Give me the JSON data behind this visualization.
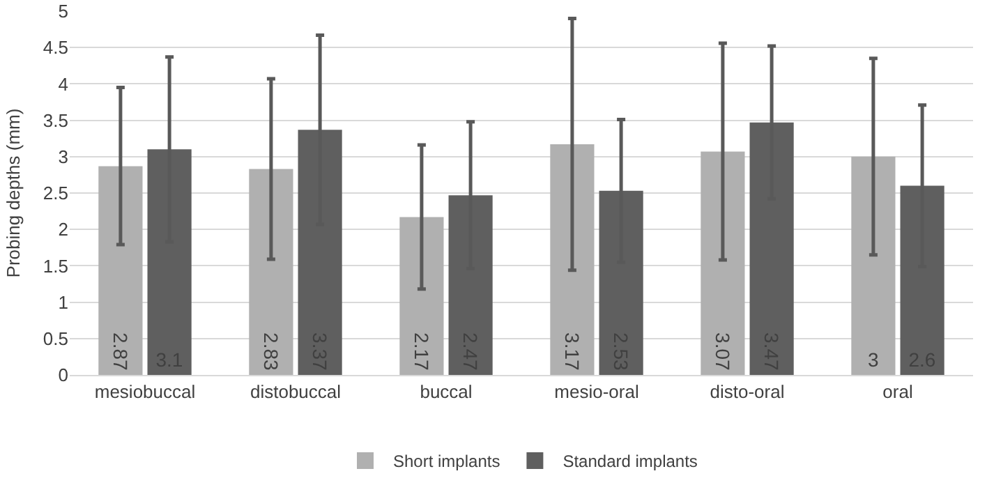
{
  "chart_data": {
    "type": "bar",
    "ylabel": "Probing depths (mm)",
    "categories": [
      "mesiobuccal",
      "distobuccal",
      "buccal",
      "mesio-oral",
      "disto-oral",
      "oral"
    ],
    "series": [
      {
        "name": "Short implants",
        "color": "#b0b0b0",
        "values": [
          2.87,
          2.83,
          2.17,
          3.17,
          3.07,
          3
        ],
        "errors": [
          1.08,
          1.24,
          0.99,
          1.73,
          1.49,
          1.35
        ]
      },
      {
        "name": "Standard implants",
        "color": "#5f5f5f",
        "values": [
          3.1,
          3.37,
          2.47,
          2.53,
          3.47,
          2.6
        ],
        "errors": [
          1.27,
          1.3,
          1.01,
          0.98,
          1.05,
          1.11
        ]
      }
    ],
    "ylim": [
      0,
      5
    ],
    "yticks": [
      0,
      0.5,
      1,
      1.5,
      2,
      2.5,
      3,
      3.5,
      4,
      4.5,
      5
    ],
    "grid": "y",
    "legend": "bottom",
    "data_labels": true
  }
}
